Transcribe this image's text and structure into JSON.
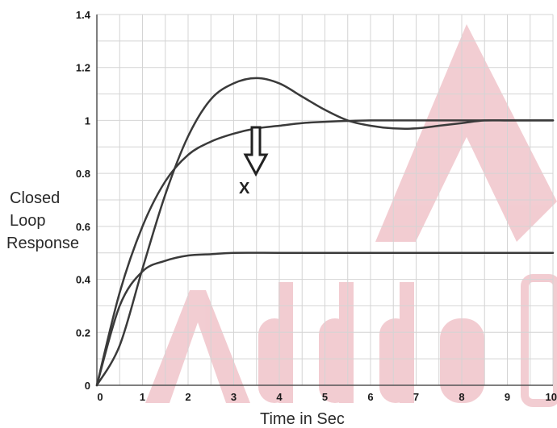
{
  "chart_data": {
    "type": "line",
    "title": "",
    "xlabel": "Time in Sec",
    "ylabel_lines": [
      "Closed",
      "Loop",
      "Response"
    ],
    "xlim": [
      0,
      10
    ],
    "ylim": [
      0,
      1.4
    ],
    "xticks": [
      "0",
      "1",
      "2",
      "3",
      "4",
      "5",
      "6",
      "7",
      "8",
      "9",
      "10"
    ],
    "yticks": [
      "0",
      "0.2",
      "0.4",
      "0.6",
      "0.8",
      "1",
      "1.2",
      "1.4"
    ],
    "grid": true,
    "series": [
      {
        "x": [
          0,
          0.5,
          1,
          1.5,
          2,
          2.5,
          3,
          3.5,
          4,
          4.5,
          5,
          5.5,
          6,
          6.5,
          7,
          7.5,
          8,
          8.5,
          9,
          9.5,
          10
        ],
        "y": [
          0,
          0.15,
          0.44,
          0.72,
          0.94,
          1.08,
          1.14,
          1.16,
          1.14,
          1.09,
          1.04,
          1.0,
          0.98,
          0.97,
          0.97,
          0.98,
          0.99,
          1.0,
          1.0,
          1.0,
          1.0
        ]
      },
      {
        "x": [
          0,
          0.5,
          1,
          1.5,
          2,
          2.5,
          3,
          3.5,
          4,
          4.5,
          5,
          6,
          7,
          8,
          9,
          10
        ],
        "y": [
          0,
          0.35,
          0.6,
          0.77,
          0.87,
          0.92,
          0.95,
          0.97,
          0.98,
          0.99,
          0.995,
          1.0,
          1.0,
          1.0,
          1.0,
          1.0
        ]
      },
      {
        "x": [
          0,
          0.5,
          1,
          1.5,
          2,
          2.5,
          3,
          4,
          5,
          6,
          7,
          8,
          9,
          10
        ],
        "y": [
          0,
          0.3,
          0.43,
          0.47,
          0.49,
          0.495,
          0.5,
          0.5,
          0.5,
          0.5,
          0.5,
          0.5,
          0.5,
          0.5
        ]
      }
    ],
    "annotation": {
      "text": "X",
      "arrow": "down"
    },
    "line_color": "#3a3a3a",
    "grid_color": "#d4d4d4",
    "watermark_text": "Adda",
    "watermark_color": "#e8a4ad"
  }
}
